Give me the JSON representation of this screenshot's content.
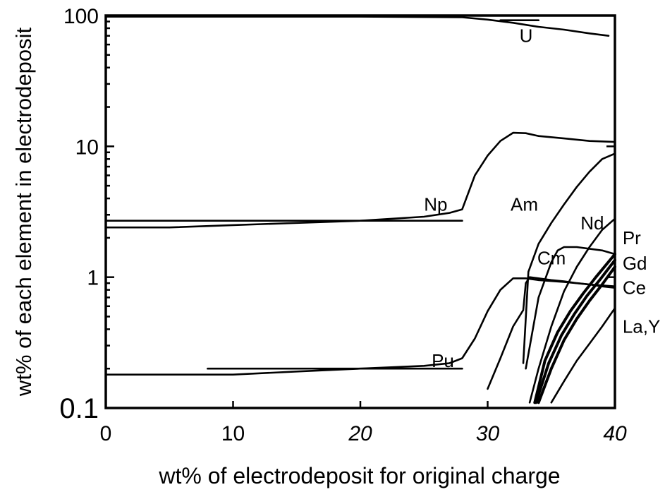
{
  "chart_data": {
    "type": "line",
    "xlabel": "wt% of electrodeposit for original charge",
    "ylabel": "wt% of each element in electrodeposit",
    "xlim": [
      0,
      40
    ],
    "ylim": [
      0.1,
      100
    ],
    "yscale": "log",
    "x_ticks": [
      {
        "value": 0,
        "label": "0"
      },
      {
        "value": 10,
        "label": "10"
      },
      {
        "value": 20,
        "label": "20"
      },
      {
        "value": 30,
        "label": "30"
      },
      {
        "value": 40,
        "label": "40"
      }
    ],
    "y_ticks": [
      {
        "value": 0.1,
        "label": "0.1"
      },
      {
        "value": 1,
        "label": "1"
      },
      {
        "value": 10,
        "label": "10"
      },
      {
        "value": 100,
        "label": "100"
      }
    ],
    "grid": false,
    "series": [
      {
        "name": "U",
        "x": [
          0,
          20,
          28,
          30,
          32,
          34,
          36,
          38,
          39.5
        ],
        "y": [
          98,
          98,
          97,
          93,
          88,
          82,
          78,
          73,
          70
        ]
      },
      {
        "name": "U",
        "x": [
          31,
          34
        ],
        "y": [
          92,
          92
        ]
      },
      {
        "name": "Np",
        "x": [
          0,
          5,
          10,
          15,
          20,
          25,
          27,
          28,
          29,
          30,
          31,
          32,
          33,
          34,
          36,
          38,
          40
        ],
        "y": [
          2.4,
          2.4,
          2.5,
          2.6,
          2.7,
          2.9,
          3.1,
          3.3,
          6.0,
          8.5,
          11,
          12.7,
          12.6,
          12.0,
          11.5,
          11.0,
          10.8
        ]
      },
      {
        "name": "Np",
        "x": [
          0,
          28
        ],
        "y": [
          2.7,
          2.7
        ]
      },
      {
        "name": "Am",
        "x": [
          32.8,
          33.2,
          34,
          35,
          36,
          37,
          38,
          39,
          40
        ],
        "y": [
          0.22,
          1.1,
          1.8,
          2.6,
          3.6,
          4.9,
          6.4,
          8.0,
          8.8
        ]
      },
      {
        "name": "Nd",
        "x": [
          33.3,
          34,
          35,
          36,
          37,
          38,
          39,
          40
        ],
        "y": [
          0.11,
          0.2,
          0.42,
          0.78,
          1.2,
          1.7,
          2.3,
          2.8
        ]
      },
      {
        "name": "Cm",
        "x": [
          33,
          34,
          35,
          35.5,
          36,
          37,
          38,
          39,
          40
        ],
        "y": [
          0.2,
          0.7,
          1.3,
          1.6,
          1.7,
          1.7,
          1.65,
          1.6,
          1.5
        ]
      },
      {
        "name": "Pr",
        "x": [
          33.7,
          34.5,
          35.5,
          36.5,
          37.5,
          38.5,
          40
        ],
        "y": [
          0.11,
          0.23,
          0.38,
          0.55,
          0.75,
          1.0,
          1.5
        ]
      },
      {
        "name": "Gd",
        "x": [
          33.8,
          34.8,
          35.8,
          36.8,
          37.8,
          38.8,
          40
        ],
        "y": [
          0.11,
          0.22,
          0.36,
          0.52,
          0.72,
          0.95,
          1.35
        ]
      },
      {
        "name": "Ce",
        "x": [
          34,
          35,
          36,
          37,
          38,
          39,
          40
        ],
        "y": [
          0.11,
          0.2,
          0.33,
          0.48,
          0.66,
          0.88,
          1.2
        ]
      },
      {
        "name": "La,Y",
        "x": [
          35,
          36,
          37,
          38,
          39,
          40
        ],
        "y": [
          0.11,
          0.16,
          0.23,
          0.31,
          0.42,
          0.58
        ]
      },
      {
        "name": "Pu",
        "x": [
          0,
          10,
          15,
          20,
          25,
          27,
          28,
          29,
          30,
          31,
          32,
          33,
          34,
          36,
          38,
          40
        ],
        "y": [
          0.18,
          0.18,
          0.19,
          0.2,
          0.21,
          0.22,
          0.24,
          0.34,
          0.55,
          0.8,
          0.98,
          0.98,
          0.95,
          0.92,
          0.88,
          0.85
        ]
      },
      {
        "name": "Pu",
        "x": [
          8,
          28
        ],
        "y": [
          0.2,
          0.2
        ]
      },
      {
        "name": "Pu",
        "x": [
          30,
          31,
          32,
          32.8,
          33,
          33.3,
          34,
          35,
          36,
          37,
          38,
          39,
          40
        ],
        "y": [
          0.14,
          0.24,
          0.42,
          0.56,
          0.9,
          1.0,
          0.98,
          0.95,
          0.93,
          0.9,
          0.88,
          0.85,
          0.83
        ]
      }
    ],
    "labels": [
      {
        "text": "U",
        "x": 32.5,
        "y": 70
      },
      {
        "text": "Np",
        "x": 25,
        "y": 3.6
      },
      {
        "text": "Am",
        "x": 31.8,
        "y": 3.6
      },
      {
        "text": "Nd",
        "x": 37.3,
        "y": 2.6
      },
      {
        "text": "Cm",
        "x": 33.9,
        "y": 1.4
      },
      {
        "text": "Pr",
        "x": 40.6,
        "y": 2.0
      },
      {
        "text": "Gd",
        "x": 40.6,
        "y": 1.28
      },
      {
        "text": "Ce",
        "x": 40.6,
        "y": 0.83
      },
      {
        "text": "La,Y",
        "x": 40.6,
        "y": 0.42
      },
      {
        "text": "Pu",
        "x": 25.6,
        "y": 0.23
      }
    ]
  }
}
